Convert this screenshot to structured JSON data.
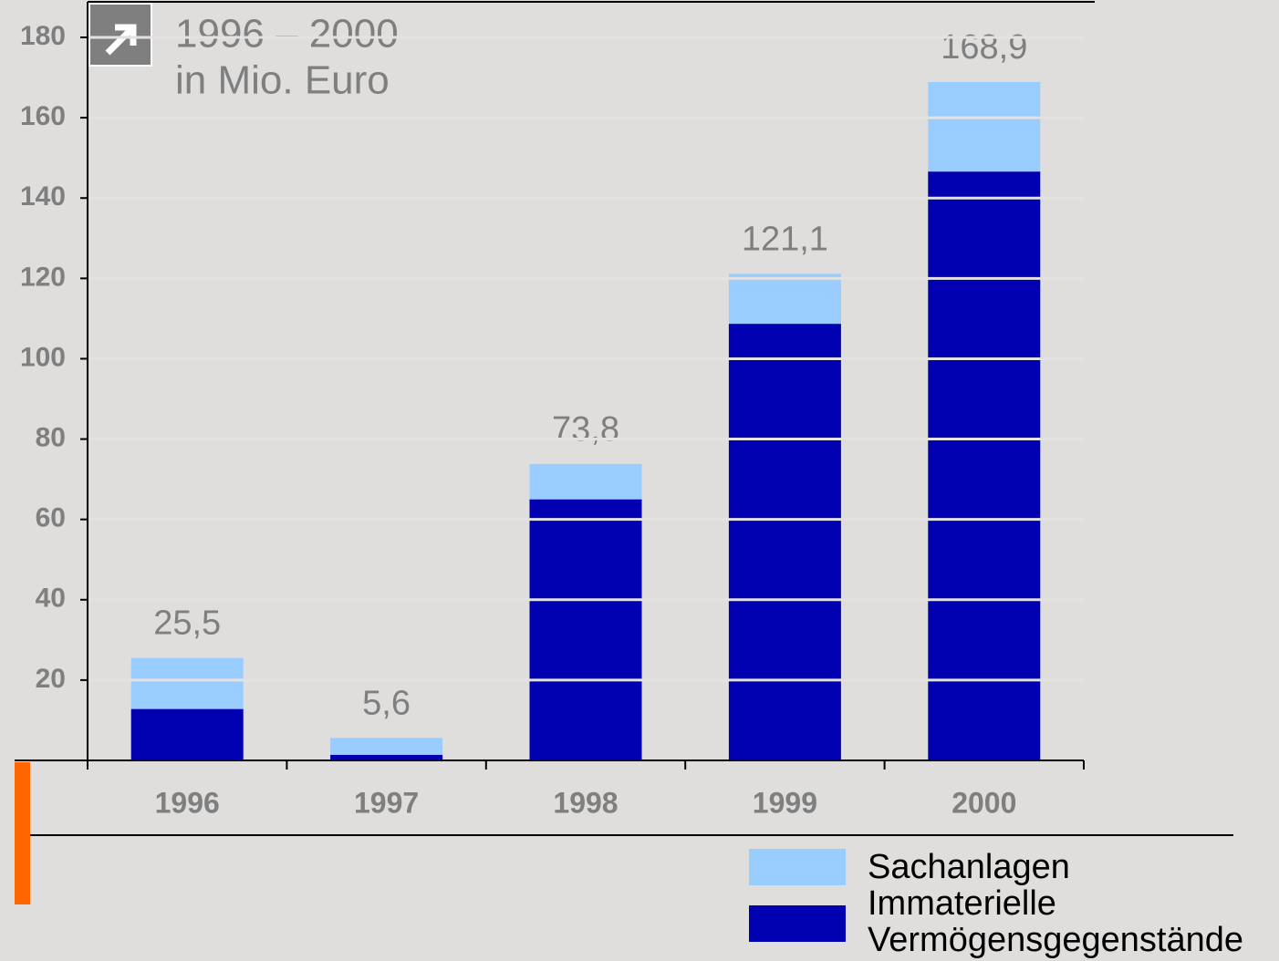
{
  "chart_data": {
    "type": "stacked_bar",
    "title": "1996 – 2000",
    "subtitle": "in Mio. Euro",
    "categories": [
      "1996",
      "1997",
      "1998",
      "1999",
      "2000"
    ],
    "series": [
      {
        "name": "Immaterielle Vermögensgegenstände",
        "color": "#0000b0",
        "values": [
          12.8,
          1.4,
          65.0,
          108.7,
          146.6
        ]
      },
      {
        "name": "Sachanlagen",
        "color": "#99ccff",
        "values": [
          12.7,
          4.2,
          8.8,
          12.4,
          22.3
        ]
      }
    ],
    "totals": [
      25.5,
      5.6,
      73.8,
      121.1,
      168.9
    ],
    "total_labels": [
      "25,5",
      "5,6",
      "73,8",
      "121,1",
      "168,9"
    ],
    "ylim": [
      0,
      180
    ],
    "yticks": [
      20,
      40,
      60,
      80,
      100,
      120,
      140,
      160,
      180
    ],
    "grid": true
  }
}
